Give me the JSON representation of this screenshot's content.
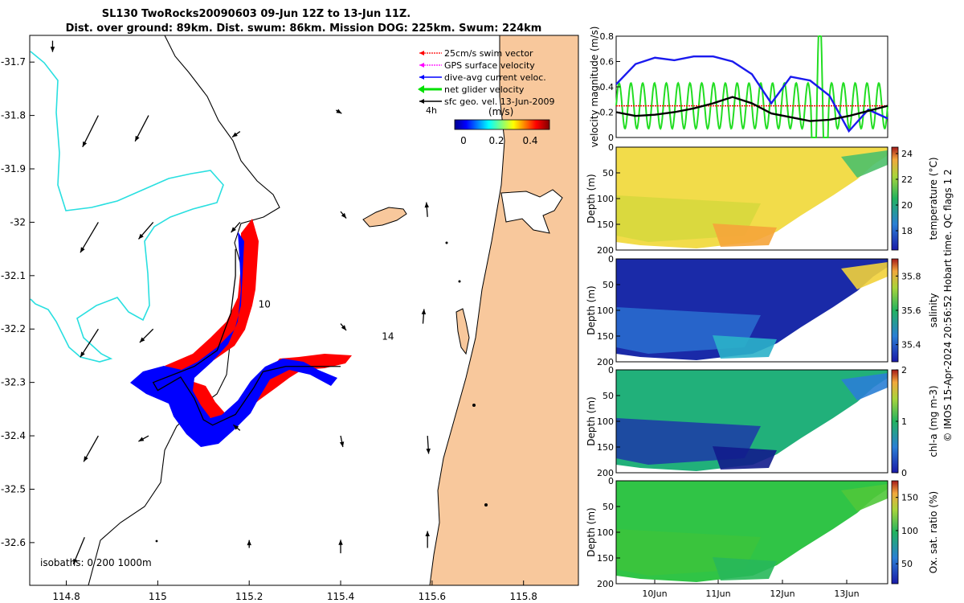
{
  "title_line1": "SL130 TwoRocks20090603 09-Jun 12Z to 13-Jun 11Z.",
  "title_line2": "Dist. over ground: 89km. Dist. swum: 86km. Mission DOG: 225km. Swum: 224km",
  "side_note": "© IMOS 15-Apr-2024 20:56:52 Hobart time. QC flags 1  2",
  "colors": {
    "land": "#f8c89c",
    "coast": "#000000",
    "isobath": "#29dfe0",
    "swim": "#ff0000",
    "gps": "#ff00ff",
    "current": "#0000ff",
    "net": "#00e000",
    "geo": "#000000"
  },
  "chart_data": [
    {
      "type": "map",
      "name": "glider-track-map",
      "xlim": [
        114.72,
        115.92
      ],
      "ylim": [
        -32.68,
        -31.65
      ],
      "x_ticks": [
        114.8,
        115,
        115.2,
        115.4,
        115.6,
        115.8
      ],
      "x_tick_labels": [
        "114.8",
        "115",
        "115.2",
        "115.4",
        "115.6",
        "115.8"
      ],
      "y_ticks": [
        -31.7,
        -31.8,
        -31.9,
        -32,
        -32.1,
        -32.2,
        -32.3,
        -32.4,
        -32.5,
        -32.6
      ],
      "y_tick_labels": [
        "-31.7",
        "-31.8",
        "-31.9",
        "-32",
        "-32.1",
        "-32.2",
        "-32.3",
        "-32.4",
        "-32.5",
        "-32.6"
      ],
      "legend": {
        "placement": "top-right",
        "entries": [
          "25cm/s swim vector",
          "GPS surface velocity",
          "dive-avg current veloc.",
          "net glider velocity",
          "sfc geo. vel. 13-Jun-2009"
        ]
      },
      "colorbar": {
        "label": "(m/s)",
        "ticks": [
          "0",
          "0.2",
          "0.4"
        ],
        "range": [
          -0.02,
          0.48
        ],
        "scale_label": "4h"
      },
      "annotations": [
        {
          "text": "10",
          "lon": 115.22,
          "lat": -32.16
        },
        {
          "text": "14",
          "lon": 115.49,
          "lat": -32.22
        }
      ],
      "isobaths_note": "isobaths: 0   200  1000m",
      "track": [
        [
          115.17,
          -32.05
        ],
        [
          115.17,
          -32.1
        ],
        [
          115.16,
          -32.17
        ],
        [
          115.13,
          -32.24
        ],
        [
          115.08,
          -32.27
        ],
        [
          115.05,
          -32.28
        ],
        [
          114.99,
          -32.3
        ],
        [
          115.0,
          -32.315
        ],
        [
          115.05,
          -32.29
        ],
        [
          115.08,
          -32.33
        ],
        [
          115.1,
          -32.37
        ],
        [
          115.12,
          -32.38
        ],
        [
          115.17,
          -32.36
        ],
        [
          115.21,
          -32.31
        ],
        [
          115.23,
          -32.28
        ],
        [
          115.28,
          -32.27
        ],
        [
          115.33,
          -32.27
        ],
        [
          115.4,
          -32.27
        ]
      ],
      "geo_vectors": [
        {
          "lon": 114.77,
          "lat": -31.66,
          "u": 0.0,
          "v": -0.1
        },
        {
          "lon": 114.87,
          "lat": -31.8,
          "u": -0.14,
          "v": -0.28
        },
        {
          "lon": 114.98,
          "lat": -31.8,
          "u": -0.12,
          "v": -0.23
        },
        {
          "lon": 115.18,
          "lat": -31.83,
          "u": -0.07,
          "v": -0.05
        },
        {
          "lon": 115.39,
          "lat": -31.79,
          "u": 0.05,
          "v": -0.03
        },
        {
          "lon": 114.87,
          "lat": -32.0,
          "u": -0.16,
          "v": -0.27
        },
        {
          "lon": 114.99,
          "lat": -32.0,
          "u": -0.13,
          "v": -0.15
        },
        {
          "lon": 115.18,
          "lat": -32.0,
          "u": -0.08,
          "v": -0.09
        },
        {
          "lon": 115.4,
          "lat": -31.98,
          "u": 0.05,
          "v": -0.06
        },
        {
          "lon": 115.59,
          "lat": -31.99,
          "u": -0.01,
          "v": 0.13
        },
        {
          "lon": 114.87,
          "lat": -32.2,
          "u": -0.16,
          "v": -0.25
        },
        {
          "lon": 114.99,
          "lat": -32.2,
          "u": -0.12,
          "v": -0.12
        },
        {
          "lon": 115.4,
          "lat": -32.19,
          "u": 0.05,
          "v": -0.06
        },
        {
          "lon": 115.58,
          "lat": -32.19,
          "u": 0.01,
          "v": 0.13
        },
        {
          "lon": 114.87,
          "lat": -32.4,
          "u": -0.13,
          "v": -0.23
        },
        {
          "lon": 114.98,
          "lat": -32.4,
          "u": -0.09,
          "v": -0.05
        },
        {
          "lon": 115.18,
          "lat": -32.39,
          "u": -0.06,
          "v": 0.05
        },
        {
          "lon": 115.4,
          "lat": -32.4,
          "u": 0.02,
          "v": -0.1
        },
        {
          "lon": 115.59,
          "lat": -32.4,
          "u": 0.01,
          "v": -0.16
        },
        {
          "lon": 114.84,
          "lat": -32.59,
          "u": -0.1,
          "v": -0.24
        },
        {
          "lon": 115.2,
          "lat": -32.61,
          "u": 0.0,
          "v": 0.07
        },
        {
          "lon": 115.4,
          "lat": -32.62,
          "u": 0.0,
          "v": 0.12
        },
        {
          "lon": 115.59,
          "lat": -32.61,
          "u": 0.0,
          "v": 0.15
        }
      ]
    },
    {
      "type": "line",
      "name": "velocity-magnitude-panel",
      "ylabel": "velocity magnitude (m/s)",
      "ylim": [
        0,
        0.8
      ],
      "y_tick_labels": [
        "0",
        "0.2",
        "0.4",
        "0.6",
        "0.8"
      ],
      "x_range_days": [
        "09-Jun 12Z",
        "13-Jun 11Z"
      ],
      "series": [
        {
          "color_key": "swim",
          "values": [
            0.25,
            0.25,
            0.25,
            0.25,
            0.25,
            0.25,
            0.25,
            0.25,
            0.25,
            0.25,
            0.25,
            0.25,
            0.25
          ]
        },
        {
          "color_key": "current",
          "values": [
            0.42,
            0.58,
            0.63,
            0.61,
            0.64,
            0.64,
            0.6,
            0.5,
            0.27,
            0.48,
            0.45,
            0.33,
            0.05,
            0.22,
            0.15
          ]
        },
        {
          "color_key": "geo",
          "values": [
            0.2,
            0.17,
            0.18,
            0.2,
            0.23,
            0.27,
            0.32,
            0.27,
            0.19,
            0.16,
            0.13,
            0.14,
            0.17,
            0.21,
            0.25
          ]
        }
      ]
    },
    {
      "type": "heatmap",
      "name": "temperature-section",
      "ylabel": "Depth (m)",
      "y_tick_labels": [
        "0",
        "50",
        "100",
        "150",
        "200"
      ],
      "colorbar_label": "temperature (°C)",
      "colorbar_ticks": [
        "18",
        "20",
        "22",
        "24"
      ],
      "clim": [
        16.5,
        24.5
      ]
    },
    {
      "type": "heatmap",
      "name": "salinity-section",
      "ylabel": "Depth (m)",
      "y_tick_labels": [
        "0",
        "50",
        "100",
        "150",
        "200"
      ],
      "colorbar_label": "salinity",
      "colorbar_ticks": [
        "35.4",
        "35.6",
        "35.8"
      ],
      "clim": [
        35.3,
        35.9
      ]
    },
    {
      "type": "heatmap",
      "name": "chlorophyll-section",
      "ylabel": "Depth (m)",
      "y_tick_labels": [
        "0",
        "50",
        "100",
        "150",
        "200"
      ],
      "colorbar_label": "chl-a (mg m-3)",
      "colorbar_ticks": [
        "0",
        "1",
        "2"
      ],
      "clim": [
        0,
        2
      ]
    },
    {
      "type": "heatmap",
      "name": "oxygen-section",
      "ylabel": "Depth (m)",
      "y_tick_labels": [
        "0",
        "50",
        "100",
        "150",
        "200"
      ],
      "x_tick_labels": [
        "10Jun",
        "11Jun",
        "12Jun",
        "13Jun"
      ],
      "colorbar_label": "Ox. sat. ratio (%)",
      "colorbar_ticks": [
        "50",
        "100",
        "150"
      ],
      "clim": [
        20,
        175
      ]
    }
  ]
}
